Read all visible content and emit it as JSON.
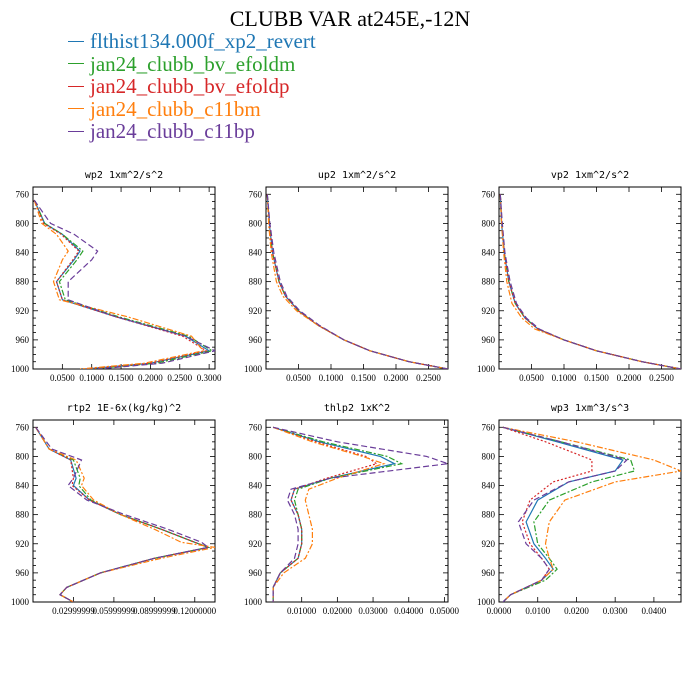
{
  "title": "CLUBB VAR at245E,-12N",
  "series": [
    {
      "name": "flthist134.000f_xp2_revert",
      "color": "#1f77b4",
      "dash": ""
    },
    {
      "name": "jan24_clubb_bv_efoldm",
      "color": "#2ca02c",
      "dash": "6,2,2,2"
    },
    {
      "name": "jan24_clubb_bv_efoldp",
      "color": "#d62728",
      "dash": "2,2"
    },
    {
      "name": "jan24_clubb_c11bm",
      "color": "#ff7f0e",
      "dash": "6,2,2,2"
    },
    {
      "name": "jan24_clubb_c11bp",
      "color": "#6a3d9a",
      "dash": "6,3"
    }
  ],
  "chart_data": [
    {
      "type": "line",
      "title": "wp2  1xm^2/s^2",
      "xlim": [
        0,
        0.31
      ],
      "ylim": [
        1000,
        750
      ],
      "xticks": [
        "0.0500",
        "0.1000",
        "0.1500",
        "0.2000",
        "0.2500",
        "0.3000"
      ],
      "xtick_values": [
        0.05,
        0.1,
        0.15,
        0.2,
        0.25,
        0.3
      ],
      "yticks": [
        760,
        800,
        840,
        880,
        920,
        960,
        1000
      ],
      "series": [
        {
          "y": [
            768,
            800,
            815,
            838,
            850,
            880,
            905,
            928,
            955,
            975,
            992,
            1000
          ],
          "x": [
            0.002,
            0.02,
            0.05,
            0.08,
            0.07,
            0.04,
            0.05,
            0.14,
            0.26,
            0.3,
            0.2,
            0.09
          ]
        },
        {
          "y": [
            768,
            800,
            815,
            838,
            850,
            880,
            905,
            928,
            955,
            975,
            992,
            1000
          ],
          "x": [
            0.002,
            0.02,
            0.05,
            0.085,
            0.075,
            0.045,
            0.055,
            0.145,
            0.265,
            0.305,
            0.21,
            0.1
          ]
        },
        {
          "y": [
            768,
            800,
            815,
            838,
            850,
            880,
            905,
            928,
            955,
            975,
            992,
            1000
          ],
          "x": [
            0.002,
            0.018,
            0.048,
            0.078,
            0.068,
            0.04,
            0.05,
            0.14,
            0.255,
            0.295,
            0.2,
            0.09
          ]
        },
        {
          "y": [
            768,
            800,
            815,
            838,
            850,
            880,
            905,
            928,
            955,
            975,
            992,
            1000
          ],
          "x": [
            0.002,
            0.015,
            0.04,
            0.06,
            0.05,
            0.035,
            0.045,
            0.16,
            0.27,
            0.29,
            0.19,
            0.08
          ]
        },
        {
          "y": [
            768,
            800,
            815,
            838,
            850,
            880,
            905,
            928,
            955,
            975,
            992,
            1000
          ],
          "x": [
            0.002,
            0.03,
            0.07,
            0.11,
            0.1,
            0.06,
            0.06,
            0.14,
            0.26,
            0.31,
            0.22,
            0.11
          ]
        }
      ]
    },
    {
      "type": "line",
      "title": "up2  1xm^2/s^2",
      "xlim": [
        0,
        0.28
      ],
      "ylim": [
        1000,
        750
      ],
      "xticks": [
        "0.0500",
        "0.1000",
        "0.1500",
        "0.2000",
        "0.2500"
      ],
      "xtick_values": [
        0.05,
        0.1,
        0.15,
        0.2,
        0.25
      ],
      "yticks": [
        760,
        800,
        840,
        880,
        920,
        960,
        1000
      ],
      "series": [
        {
          "y": [
            760,
            800,
            840,
            880,
            900,
            920,
            940,
            960,
            975,
            990,
            1000
          ],
          "x": [
            0.002,
            0.005,
            0.01,
            0.02,
            0.03,
            0.05,
            0.08,
            0.12,
            0.16,
            0.22,
            0.28
          ]
        },
        {
          "y": [
            760,
            800,
            840,
            880,
            900,
            920,
            940,
            960,
            975,
            990,
            1000
          ],
          "x": [
            0.002,
            0.005,
            0.01,
            0.02,
            0.03,
            0.05,
            0.08,
            0.12,
            0.16,
            0.22,
            0.28
          ]
        },
        {
          "y": [
            760,
            800,
            840,
            880,
            900,
            920,
            940,
            960,
            975,
            990,
            1000
          ],
          "x": [
            0.002,
            0.005,
            0.01,
            0.02,
            0.03,
            0.05,
            0.08,
            0.12,
            0.16,
            0.22,
            0.28
          ]
        },
        {
          "y": [
            760,
            800,
            840,
            880,
            900,
            920,
            940,
            960,
            975,
            990,
            1000
          ],
          "x": [
            0.002,
            0.004,
            0.008,
            0.016,
            0.026,
            0.047,
            0.08,
            0.12,
            0.16,
            0.22,
            0.28
          ]
        },
        {
          "y": [
            760,
            800,
            840,
            880,
            900,
            920,
            940,
            960,
            975,
            990,
            1000
          ],
          "x": [
            0.002,
            0.006,
            0.012,
            0.022,
            0.032,
            0.052,
            0.082,
            0.12,
            0.16,
            0.22,
            0.28
          ]
        }
      ]
    },
    {
      "type": "line",
      "title": "vp2  1xm^2/s^2",
      "xlim": [
        0,
        0.28
      ],
      "ylim": [
        1000,
        750
      ],
      "xticks": [
        "0.0500",
        "0.1000",
        "0.1500",
        "0.2000",
        "0.2500"
      ],
      "xtick_values": [
        0.05,
        0.1,
        0.15,
        0.2,
        0.25
      ],
      "yticks": [
        760,
        800,
        840,
        880,
        920,
        960,
        1000
      ],
      "series": [
        {
          "y": [
            760,
            800,
            840,
            880,
            910,
            930,
            945,
            960,
            975,
            990,
            1000
          ],
          "x": [
            0.002,
            0.004,
            0.008,
            0.015,
            0.025,
            0.04,
            0.06,
            0.1,
            0.15,
            0.22,
            0.28
          ]
        },
        {
          "y": [
            760,
            800,
            840,
            880,
            910,
            930,
            945,
            960,
            975,
            990,
            1000
          ],
          "x": [
            0.002,
            0.004,
            0.008,
            0.015,
            0.025,
            0.04,
            0.06,
            0.1,
            0.15,
            0.22,
            0.28
          ]
        },
        {
          "y": [
            760,
            800,
            840,
            880,
            910,
            930,
            945,
            960,
            975,
            990,
            1000
          ],
          "x": [
            0.002,
            0.004,
            0.008,
            0.015,
            0.025,
            0.04,
            0.06,
            0.1,
            0.15,
            0.22,
            0.28
          ]
        },
        {
          "y": [
            760,
            800,
            840,
            880,
            910,
            930,
            945,
            960,
            975,
            990,
            1000
          ],
          "x": [
            0.002,
            0.004,
            0.007,
            0.012,
            0.02,
            0.035,
            0.055,
            0.1,
            0.15,
            0.22,
            0.28
          ]
        },
        {
          "y": [
            760,
            800,
            840,
            880,
            910,
            930,
            945,
            960,
            975,
            990,
            1000
          ],
          "x": [
            0.002,
            0.005,
            0.009,
            0.017,
            0.027,
            0.042,
            0.062,
            0.1,
            0.15,
            0.22,
            0.28
          ]
        }
      ]
    },
    {
      "type": "line",
      "title": "rtp2  1E-6x(kg/kg)^2",
      "xlim": [
        0,
        0.135
      ],
      "ylim": [
        1000,
        750
      ],
      "xticks": [
        "0.02999999",
        "0.05999999",
        "0.08999999",
        "0.12000000"
      ],
      "xtick_values": [
        0.03,
        0.06,
        0.09,
        0.12
      ],
      "yticks": [
        760,
        800,
        840,
        880,
        920,
        960,
        1000
      ],
      "series": [
        {
          "y": [
            760,
            790,
            805,
            830,
            840,
            860,
            880,
            900,
            918,
            925,
            940,
            960,
            980,
            990,
            1000
          ],
          "x": [
            0.002,
            0.012,
            0.028,
            0.032,
            0.03,
            0.042,
            0.065,
            0.095,
            0.12,
            0.13,
            0.09,
            0.05,
            0.025,
            0.02,
            0.03
          ]
        },
        {
          "y": [
            760,
            790,
            805,
            830,
            840,
            860,
            880,
            900,
            918,
            925,
            940,
            960,
            980,
            990,
            1000
          ],
          "x": [
            0.002,
            0.012,
            0.03,
            0.035,
            0.034,
            0.043,
            0.065,
            0.095,
            0.12,
            0.13,
            0.09,
            0.05,
            0.025,
            0.02,
            0.03
          ]
        },
        {
          "y": [
            760,
            790,
            805,
            830,
            840,
            860,
            880,
            900,
            918,
            925,
            940,
            960,
            980,
            990,
            1000
          ],
          "x": [
            0.002,
            0.012,
            0.028,
            0.03,
            0.029,
            0.042,
            0.065,
            0.095,
            0.12,
            0.13,
            0.09,
            0.05,
            0.025,
            0.02,
            0.03
          ]
        },
        {
          "y": [
            760,
            790,
            805,
            830,
            840,
            860,
            880,
            900,
            918,
            925,
            940,
            960,
            980,
            990,
            1000
          ],
          "x": [
            0.002,
            0.012,
            0.032,
            0.038,
            0.036,
            0.045,
            0.065,
            0.09,
            0.11,
            0.135,
            0.095,
            0.05,
            0.025,
            0.02,
            0.03
          ]
        },
        {
          "y": [
            760,
            790,
            805,
            830,
            840,
            860,
            880,
            900,
            918,
            925,
            940,
            960,
            980,
            990,
            1000
          ],
          "x": [
            0.002,
            0.014,
            0.036,
            0.03,
            0.026,
            0.04,
            0.068,
            0.1,
            0.125,
            0.13,
            0.09,
            0.05,
            0.025,
            0.02,
            0.03
          ]
        }
      ]
    },
    {
      "type": "line",
      "title": "thlp2  1xK^2",
      "xlim": [
        0,
        0.051
      ],
      "ylim": [
        1000,
        750
      ],
      "xticks": [
        "0.01000",
        "0.02000",
        "0.03000",
        "0.04000",
        "0.05000"
      ],
      "xtick_values": [
        0.01,
        0.02,
        0.03,
        0.04,
        0.05
      ],
      "yticks": [
        760,
        800,
        840,
        880,
        920,
        960,
        1000
      ],
      "series": [
        {
          "y": [
            760,
            780,
            800,
            810,
            830,
            845,
            860,
            880,
            900,
            920,
            940,
            960,
            980,
            1000
          ],
          "x": [
            0.002,
            0.015,
            0.032,
            0.036,
            0.018,
            0.008,
            0.007,
            0.009,
            0.01,
            0.01,
            0.009,
            0.004,
            0.002,
            0.002
          ]
        },
        {
          "y": [
            760,
            780,
            800,
            810,
            830,
            845,
            860,
            880,
            900,
            920,
            940,
            960,
            980,
            1000
          ],
          "x": [
            0.002,
            0.016,
            0.034,
            0.038,
            0.018,
            0.009,
            0.008,
            0.009,
            0.01,
            0.01,
            0.009,
            0.004,
            0.002,
            0.002
          ]
        },
        {
          "y": [
            760,
            780,
            800,
            810,
            830,
            845,
            860,
            880,
            900,
            920,
            940,
            960,
            980,
            1000
          ],
          "x": [
            0.002,
            0.014,
            0.028,
            0.031,
            0.017,
            0.008,
            0.007,
            0.009,
            0.01,
            0.01,
            0.009,
            0.004,
            0.002,
            0.002
          ]
        },
        {
          "y": [
            760,
            780,
            800,
            810,
            830,
            845,
            860,
            880,
            900,
            920,
            940,
            960,
            980,
            1000
          ],
          "x": [
            0.002,
            0.013,
            0.027,
            0.033,
            0.02,
            0.012,
            0.011,
            0.012,
            0.013,
            0.013,
            0.011,
            0.005,
            0.002,
            0.002
          ]
        },
        {
          "y": [
            760,
            780,
            800,
            810,
            830,
            845,
            860,
            880,
            900,
            920,
            940,
            960,
            980,
            1000
          ],
          "x": [
            0.002,
            0.02,
            0.045,
            0.051,
            0.018,
            0.007,
            0.006,
            0.008,
            0.009,
            0.009,
            0.008,
            0.004,
            0.002,
            0.002
          ]
        }
      ]
    },
    {
      "type": "line",
      "title": "wp3  1xm^3/s^3",
      "xlim": [
        0,
        0.047
      ],
      "ylim": [
        1000,
        750
      ],
      "xticks": [
        "0.0000",
        "0.0100",
        "0.0200",
        "0.0300",
        "0.0400"
      ],
      "xtick_values": [
        0.0,
        0.01,
        0.02,
        0.03,
        0.04
      ],
      "yticks": [
        760,
        800,
        840,
        880,
        920,
        960,
        1000
      ],
      "series": [
        {
          "y": [
            760,
            780,
            805,
            820,
            835,
            860,
            890,
            920,
            940,
            955,
            970,
            990,
            1000
          ],
          "x": [
            0.001,
            0.015,
            0.032,
            0.03,
            0.018,
            0.01,
            0.007,
            0.009,
            0.012,
            0.014,
            0.011,
            0.003,
            0.001
          ]
        },
        {
          "y": [
            760,
            780,
            805,
            820,
            835,
            860,
            890,
            920,
            940,
            955,
            970,
            990,
            1000
          ],
          "x": [
            0.001,
            0.016,
            0.034,
            0.035,
            0.024,
            0.013,
            0.009,
            0.01,
            0.013,
            0.015,
            0.012,
            0.003,
            0.001
          ]
        },
        {
          "y": [
            760,
            780,
            805,
            820,
            835,
            860,
            890,
            920,
            940,
            955,
            970,
            990,
            1000
          ],
          "x": [
            0.001,
            0.012,
            0.024,
            0.024,
            0.014,
            0.008,
            0.006,
            0.008,
            0.011,
            0.013,
            0.011,
            0.003,
            0.001
          ]
        },
        {
          "y": [
            760,
            780,
            805,
            820,
            835,
            860,
            890,
            920,
            940,
            955,
            970,
            990,
            1000
          ],
          "x": [
            0.001,
            0.02,
            0.04,
            0.047,
            0.03,
            0.017,
            0.013,
            0.012,
            0.013,
            0.014,
            0.011,
            0.003,
            0.001
          ]
        },
        {
          "y": [
            760,
            780,
            805,
            820,
            835,
            860,
            890,
            920,
            940,
            955,
            970,
            990,
            1000
          ],
          "x": [
            0.001,
            0.016,
            0.033,
            0.03,
            0.018,
            0.009,
            0.005,
            0.007,
            0.011,
            0.013,
            0.011,
            0.003,
            0.001
          ]
        }
      ]
    }
  ]
}
